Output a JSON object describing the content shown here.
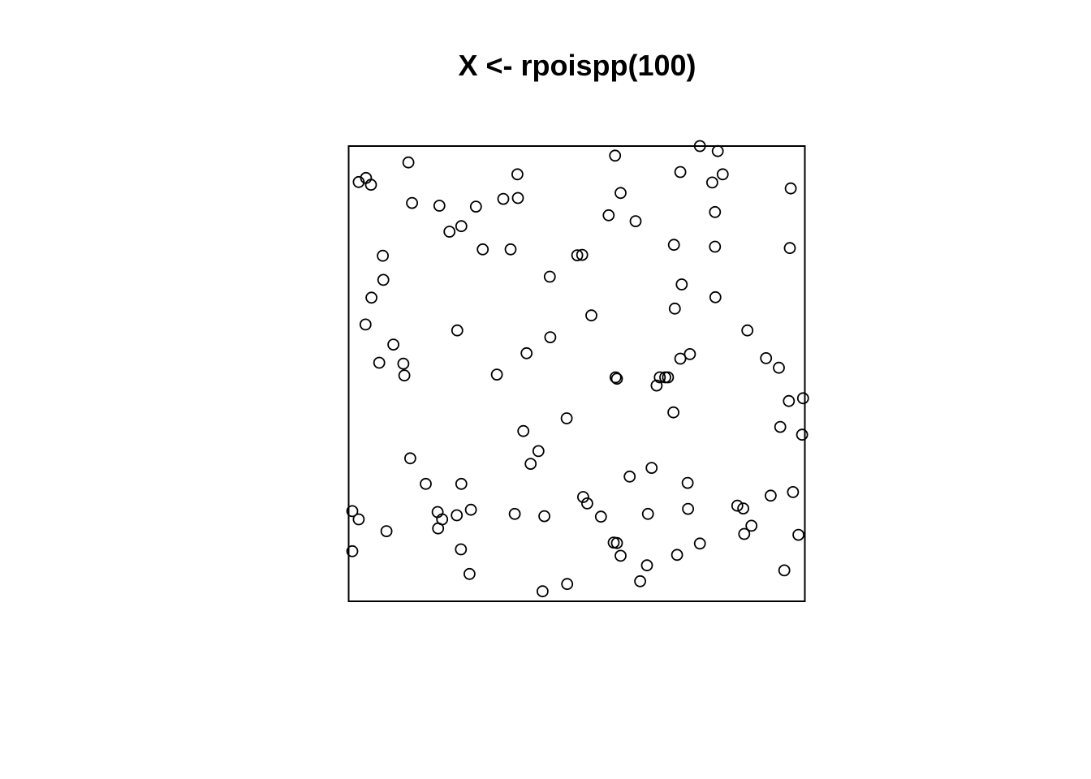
{
  "chart_data": {
    "type": "scatter",
    "title": "X <- rpoispp(100)",
    "xlabel": "",
    "ylabel": "",
    "xlim": [
      0,
      1
    ],
    "ylim": [
      0,
      1
    ],
    "grid": false,
    "axes": false,
    "marker": "open-circle",
    "colors": {
      "point": "#000000",
      "frame": "#000000"
    },
    "series": [
      {
        "points": [
          [
            0.008,
            0.198
          ],
          [
            0.008,
            0.11
          ],
          [
            0.022,
            0.18
          ],
          [
            0.022,
            0.921
          ],
          [
            0.038,
            0.93
          ],
          [
            0.049,
            0.915
          ],
          [
            0.037,
            0.608
          ],
          [
            0.05,
            0.667
          ],
          [
            0.067,
            0.524
          ],
          [
            0.075,
            0.759
          ],
          [
            0.076,
            0.706
          ],
          [
            0.083,
            0.154
          ],
          [
            0.098,
            0.564
          ],
          [
            0.12,
            0.522
          ],
          [
            0.122,
            0.496
          ],
          [
            0.131,
            0.964
          ],
          [
            0.135,
            0.314
          ],
          [
            0.139,
            0.875
          ],
          [
            0.169,
            0.258
          ],
          [
            0.195,
            0.196
          ],
          [
            0.196,
            0.16
          ],
          [
            0.205,
            0.18
          ],
          [
            0.199,
            0.869
          ],
          [
            0.221,
            0.812
          ],
          [
            0.238,
            0.595
          ],
          [
            0.237,
            0.189
          ],
          [
            0.247,
            0.824
          ],
          [
            0.247,
            0.258
          ],
          [
            0.246,
            0.114
          ],
          [
            0.265,
            0.06
          ],
          [
            0.268,
            0.201
          ],
          [
            0.279,
            0.867
          ],
          [
            0.294,
            0.773
          ],
          [
            0.325,
            0.498
          ],
          [
            0.339,
            0.884
          ],
          [
            0.355,
            0.773
          ],
          [
            0.364,
            0.192
          ],
          [
            0.37,
            0.938
          ],
          [
            0.371,
            0.886
          ],
          [
            0.383,
            0.374
          ],
          [
            0.39,
            0.545
          ],
          [
            0.399,
            0.302
          ],
          [
            0.416,
            0.33
          ],
          [
            0.425,
            0.022
          ],
          [
            0.429,
            0.187
          ],
          [
            0.441,
            0.713
          ],
          [
            0.442,
            0.58
          ],
          [
            0.478,
            0.402
          ],
          [
            0.479,
            0.038
          ],
          [
            0.501,
            0.76
          ],
          [
            0.512,
            0.761
          ],
          [
            0.514,
            0.229
          ],
          [
            0.523,
            0.215
          ],
          [
            0.532,
            0.628
          ],
          [
            0.553,
            0.186
          ],
          [
            0.57,
            0.848
          ],
          [
            0.581,
            0.129
          ],
          [
            0.584,
            0.979
          ],
          [
            0.585,
            0.492
          ],
          [
            0.588,
            0.489
          ],
          [
            0.588,
            0.128
          ],
          [
            0.596,
            0.897
          ],
          [
            0.596,
            0.1
          ],
          [
            0.616,
            0.274
          ],
          [
            0.629,
            0.835
          ],
          [
            0.639,
            0.044
          ],
          [
            0.654,
            0.079
          ],
          [
            0.656,
            0.192
          ],
          [
            0.664,
            0.293
          ],
          [
            0.675,
            0.474
          ],
          [
            0.682,
            0.492
          ],
          [
            0.694,
            0.492
          ],
          [
            0.7,
            0.492
          ],
          [
            0.727,
            0.943
          ],
          [
            0.712,
            0.415
          ],
          [
            0.713,
            0.783
          ],
          [
            0.715,
            0.643
          ],
          [
            0.72,
            0.102
          ],
          [
            0.727,
            0.533
          ],
          [
            0.73,
            0.696
          ],
          [
            0.743,
            0.26
          ],
          [
            0.744,
            0.203
          ],
          [
            0.748,
            0.543
          ],
          [
            0.77,
            1.0
          ],
          [
            0.77,
            0.127
          ],
          [
            0.797,
            0.92
          ],
          [
            0.803,
            0.855
          ],
          [
            0.803,
            0.779
          ],
          [
            0.804,
            0.668
          ],
          [
            0.809,
            0.989
          ],
          [
            0.82,
            0.938
          ],
          [
            0.852,
            0.21
          ],
          [
            0.865,
            0.204
          ],
          [
            0.867,
            0.148
          ],
          [
            0.883,
            0.166
          ],
          [
            0.874,
            0.595
          ],
          [
            0.915,
            0.534
          ],
          [
            0.925,
            0.232
          ],
          [
            0.943,
            0.513
          ],
          [
            0.946,
            0.383
          ],
          [
            0.955,
            0.068
          ],
          [
            0.965,
            0.44
          ],
          [
            0.967,
            0.776
          ],
          [
            0.969,
            0.907
          ],
          [
            0.974,
            0.24
          ],
          [
            0.986,
            0.146
          ],
          [
            0.994,
            0.366
          ],
          [
            0.996,
            0.446
          ]
        ]
      }
    ]
  }
}
